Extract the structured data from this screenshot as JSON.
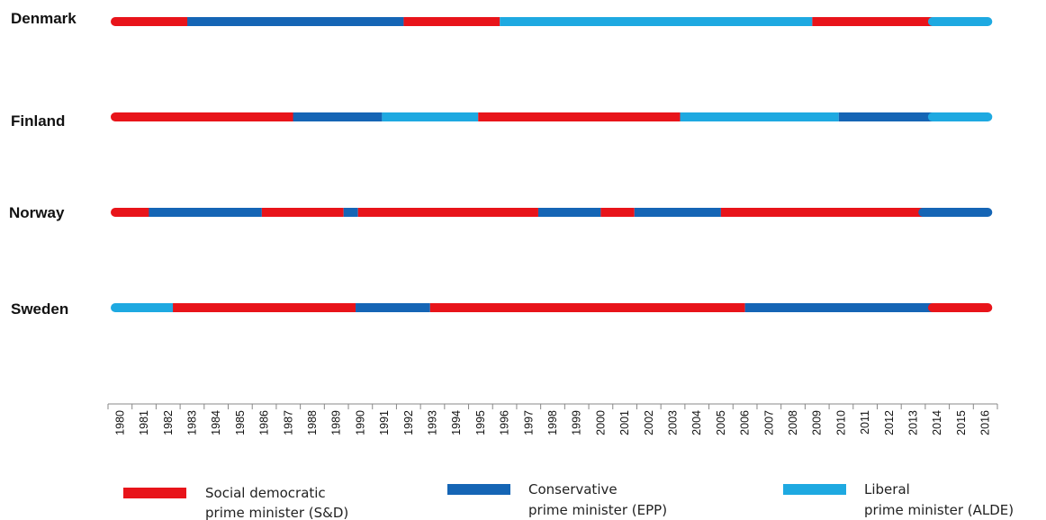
{
  "chart_data": {
    "type": "timeline",
    "x_range": [
      1980,
      2016
    ],
    "years": [
      1980,
      1981,
      1982,
      1983,
      1984,
      1985,
      1986,
      1987,
      1988,
      1989,
      1990,
      1991,
      1992,
      1993,
      1994,
      1995,
      1996,
      1997,
      1998,
      1999,
      2000,
      2001,
      2002,
      2003,
      2004,
      2005,
      2006,
      2007,
      2008,
      2009,
      2010,
      2011,
      2012,
      2013,
      2014,
      2015,
      2016
    ],
    "colors": {
      "SD": "#e8141a",
      "EPP": "#1565b5",
      "ALDE": "#1ea9e1"
    },
    "countries": [
      {
        "name": "Denmark",
        "segments": [
          {
            "start": 1980,
            "end": 1983,
            "party": "SD"
          },
          {
            "start": 1983,
            "end": 1992,
            "party": "EPP"
          },
          {
            "start": 1992,
            "end": 1996,
            "party": "SD"
          },
          {
            "start": 1996,
            "end": 2009,
            "party": "ALDE"
          },
          {
            "start": 2009,
            "end": 2014,
            "party": "SD"
          },
          {
            "start": 2014,
            "end": 2016.3,
            "party": "ALDE"
          }
        ]
      },
      {
        "name": "Finland",
        "segments": [
          {
            "start": 1980,
            "end": 1987.4,
            "party": "SD"
          },
          {
            "start": 1987.4,
            "end": 1991.1,
            "party": "EPP"
          },
          {
            "start": 1991.1,
            "end": 1995.1,
            "party": "ALDE"
          },
          {
            "start": 1995.1,
            "end": 2003.5,
            "party": "SD"
          },
          {
            "start": 2003.5,
            "end": 2010.1,
            "party": "ALDE"
          },
          {
            "start": 2010.1,
            "end": 2014,
            "party": "EPP"
          },
          {
            "start": 2014,
            "end": 2016.3,
            "party": "ALDE"
          }
        ]
      },
      {
        "name": "Norway",
        "segments": [
          {
            "start": 1980,
            "end": 1981.4,
            "party": "SD"
          },
          {
            "start": 1981.4,
            "end": 1986.1,
            "party": "EPP"
          },
          {
            "start": 1986.1,
            "end": 1989.5,
            "party": "SD"
          },
          {
            "start": 1989.5,
            "end": 1990.1,
            "party": "EPP"
          },
          {
            "start": 1990.1,
            "end": 1997.6,
            "party": "SD"
          },
          {
            "start": 1997.6,
            "end": 2000.2,
            "party": "EPP"
          },
          {
            "start": 2000.2,
            "end": 2001.6,
            "party": "SD"
          },
          {
            "start": 2001.6,
            "end": 2005.2,
            "party": "EPP"
          },
          {
            "start": 2005.2,
            "end": 2013.6,
            "party": "SD"
          },
          {
            "start": 2013.6,
            "end": 2016.3,
            "party": "EPP"
          }
        ]
      },
      {
        "name": "Sweden",
        "segments": [
          {
            "start": 1980,
            "end": 1982.4,
            "party": "ALDE"
          },
          {
            "start": 1982.4,
            "end": 1990,
            "party": "SD"
          },
          {
            "start": 1990,
            "end": 1993.1,
            "party": "EPP"
          },
          {
            "start": 1993.1,
            "end": 2006.2,
            "party": "SD"
          },
          {
            "start": 2006.2,
            "end": 2014,
            "party": "EPP"
          },
          {
            "start": 2014,
            "end": 2016.3,
            "party": "SD"
          }
        ]
      }
    ],
    "legend": [
      {
        "party": "SD",
        "label_line1": "Social democratic",
        "label_line2": "prime minister (S&D)"
      },
      {
        "party": "EPP",
        "label_line1": "Conservative",
        "label_line2": "prime minister (EPP)"
      },
      {
        "party": "ALDE",
        "label_line1": "Liberal",
        "label_line2": "prime minister (ALDE)"
      }
    ]
  }
}
